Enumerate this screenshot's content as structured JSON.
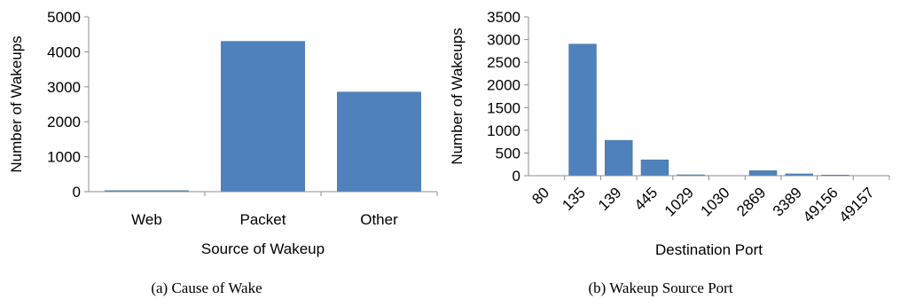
{
  "chart_data": [
    {
      "type": "bar",
      "caption": "(a)  Cause of Wake",
      "xlabel": "Source of Wakeup",
      "ylabel": "Number of Wakeups",
      "categories": [
        "Web",
        "Packet",
        "Other"
      ],
      "values": [
        30,
        4300,
        2850
      ],
      "ylim": [
        0,
        5000
      ],
      "yticks": [
        "0",
        "1000",
        "2000",
        "3000",
        "4000",
        "5000"
      ],
      "grid": false,
      "color": "#4f81bd"
    },
    {
      "type": "bar",
      "caption": "(b)  Wakeup Source Port",
      "xlabel": "Destination Port",
      "ylabel": "Number of Wakeups",
      "categories": [
        "80",
        "135",
        "139",
        "445",
        "1029",
        "1030",
        "2869",
        "3389",
        "49156",
        "49157"
      ],
      "values": [
        0,
        2900,
        780,
        350,
        20,
        0,
        110,
        40,
        15,
        0
      ],
      "ylim": [
        0,
        3500
      ],
      "yticks": [
        "0",
        "500",
        "1000",
        "1500",
        "2000",
        "2500",
        "3000",
        "3500"
      ],
      "grid": false,
      "color": "#4f81bd"
    }
  ]
}
